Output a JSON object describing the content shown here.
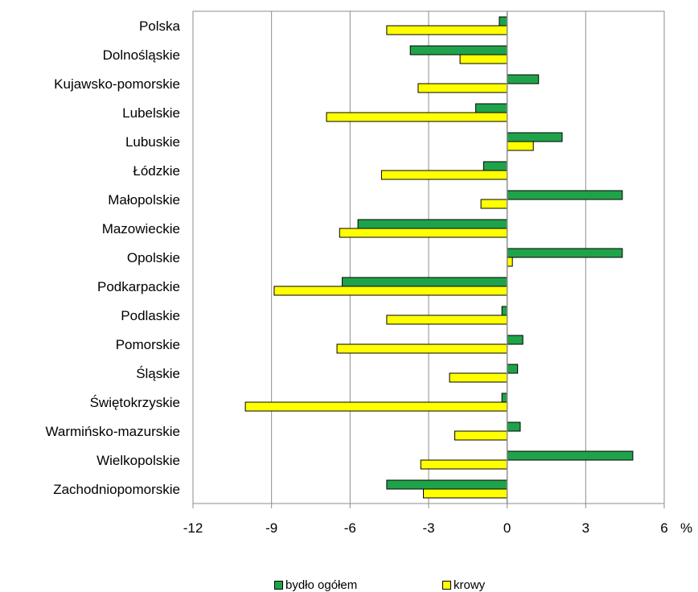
{
  "chart_data": {
    "type": "bar",
    "orientation": "horizontal",
    "categories": [
      "Polska",
      "Dolnośląskie",
      "Kujawsko-pomorskie",
      "Lubelskie",
      "Lubuskie",
      "Łódzkie",
      "Małopolskie",
      "Mazowieckie",
      "Opolskie",
      "Podkarpackie",
      "Podlaskie",
      "Pomorskie",
      "Śląskie",
      "Świętokrzyskie",
      "Warmińsko-mazurskie",
      "Wielkopolskie",
      "Zachodniopomorskie"
    ],
    "series": [
      {
        "name": "bydło ogółem",
        "color": "#1fa34a",
        "values": [
          -0.3,
          -3.7,
          1.2,
          -1.2,
          2.1,
          -0.9,
          4.4,
          -5.7,
          4.4,
          -6.3,
          -0.2,
          0.6,
          0.4,
          -0.2,
          0.5,
          4.8,
          -4.6
        ]
      },
      {
        "name": "krowy",
        "color": "#ffff00",
        "values": [
          -4.6,
          -1.8,
          -3.4,
          -6.9,
          1.0,
          -4.8,
          -1.0,
          -6.4,
          0.2,
          -8.9,
          -4.6,
          -6.5,
          -2.2,
          -10.0,
          -2.0,
          -3.3,
          -3.2
        ]
      }
    ],
    "xlim": [
      -12,
      6
    ],
    "xticks": [
      -12,
      -9,
      -6,
      -3,
      0,
      3,
      6
    ],
    "xticklabels": [
      "-12",
      "-9",
      "-6",
      "-3",
      "0",
      "3",
      "6"
    ],
    "unit_label": "%",
    "grid": true,
    "legend_position": "bottom"
  }
}
